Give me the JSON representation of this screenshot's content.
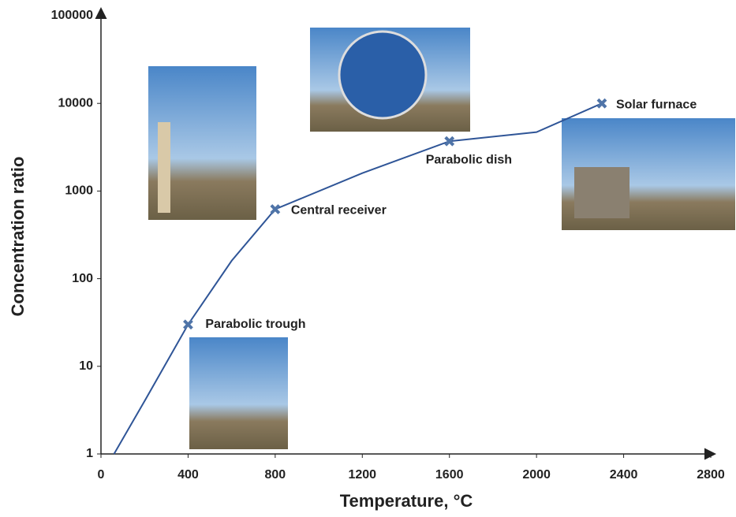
{
  "chart_data": {
    "type": "line",
    "x_label": "Temperature, °C",
    "y_label": "Concentration ratio",
    "xlim": [
      0,
      2800
    ],
    "xticks": [
      0,
      400,
      800,
      1200,
      1600,
      2000,
      2400,
      2800
    ],
    "ylim": [
      1,
      100000
    ],
    "yticks": [
      1,
      10,
      100,
      1000,
      10000,
      100000
    ],
    "log_y": true,
    "series": [
      {
        "color": "#2f5597",
        "x": [
          60,
          200,
          400,
          600,
          800,
          1200,
          1600,
          2000,
          2300
        ],
        "values": [
          1,
          4,
          30,
          160,
          620,
          1600,
          3700,
          4700,
          10000
        ]
      },
      {
        "color": "#4f74a8",
        "marker": "x",
        "x": [
          400,
          800,
          1600,
          2300
        ],
        "values": [
          30,
          620,
          3700,
          10000
        ],
        "labels": [
          "Parabolic trough",
          "Central receiver",
          "Parabolic dish",
          "Solar furnace"
        ]
      }
    ]
  }
}
